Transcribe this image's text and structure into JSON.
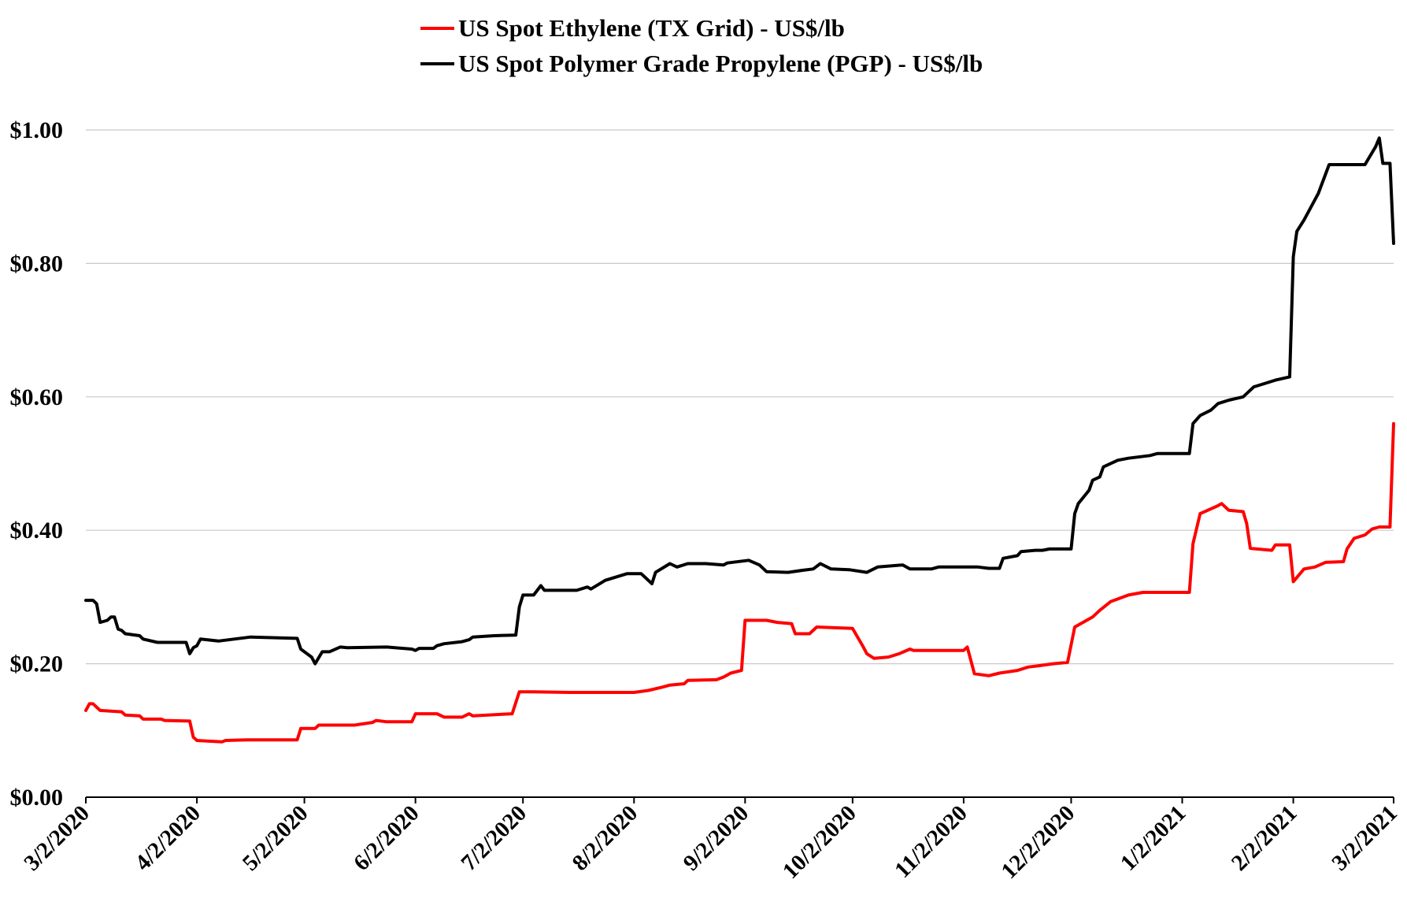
{
  "chart_data": {
    "type": "line",
    "title": "",
    "xlabel": "",
    "ylabel": "",
    "ylim": [
      0,
      1.0
    ],
    "grid": true,
    "legend_position": "top-center",
    "x_range": [
      "3/2/2020",
      "3/2/2021"
    ],
    "x_tick_labels": [
      "3/2/2020",
      "4/2/2020",
      "5/2/2020",
      "6/2/2020",
      "7/2/2020",
      "8/2/2020",
      "9/2/2020",
      "10/2/2020",
      "11/2/2020",
      "12/2/2020",
      "1/2/2021",
      "2/2/2021",
      "3/2/2021"
    ],
    "y_ticks": [
      0,
      0.2,
      0.4,
      0.6,
      0.8,
      1.0
    ],
    "y_tick_labels": [
      "$0.00",
      "$0.20",
      "$0.40",
      "$0.60",
      "$0.80",
      "$1.00"
    ],
    "series": [
      {
        "name": "US Spot Ethylene (TX Grid) - US$/lb",
        "color": "#ff0000",
        "points": [
          [
            "2020-03-02",
            0.13
          ],
          [
            "2020-03-03",
            0.14
          ],
          [
            "2020-03-04",
            0.14
          ],
          [
            "2020-03-06",
            0.13
          ],
          [
            "2020-03-12",
            0.128
          ],
          [
            "2020-03-13",
            0.123
          ],
          [
            "2020-03-17",
            0.122
          ],
          [
            "2020-03-18",
            0.117
          ],
          [
            "2020-03-23",
            0.117
          ],
          [
            "2020-03-24",
            0.115
          ],
          [
            "2020-03-31",
            0.114
          ],
          [
            "2020-04-01",
            0.09
          ],
          [
            "2020-04-02",
            0.085
          ],
          [
            "2020-04-09",
            0.083
          ],
          [
            "2020-04-10",
            0.085
          ],
          [
            "2020-04-16",
            0.086
          ],
          [
            "2020-04-30",
            0.086
          ],
          [
            "2020-05-01",
            0.103
          ],
          [
            "2020-05-05",
            0.103
          ],
          [
            "2020-05-06",
            0.108
          ],
          [
            "2020-05-16",
            0.108
          ],
          [
            "2020-05-21",
            0.112
          ],
          [
            "2020-05-22",
            0.115
          ],
          [
            "2020-05-25",
            0.113
          ],
          [
            "2020-06-01",
            0.113
          ],
          [
            "2020-06-02",
            0.125
          ],
          [
            "2020-06-08",
            0.125
          ],
          [
            "2020-06-10",
            0.12
          ],
          [
            "2020-06-15",
            0.12
          ],
          [
            "2020-06-17",
            0.125
          ],
          [
            "2020-06-18",
            0.122
          ],
          [
            "2020-06-29",
            0.125
          ],
          [
            "2020-07-01",
            0.158
          ],
          [
            "2020-07-05",
            0.158
          ],
          [
            "2020-07-15",
            0.157
          ],
          [
            "2020-08-02",
            0.157
          ],
          [
            "2020-08-06",
            0.16
          ],
          [
            "2020-08-10",
            0.165
          ],
          [
            "2020-08-12",
            0.168
          ],
          [
            "2020-08-16",
            0.17
          ],
          [
            "2020-08-17",
            0.175
          ],
          [
            "2020-08-25",
            0.176
          ],
          [
            "2020-08-27",
            0.18
          ],
          [
            "2020-08-29",
            0.186
          ],
          [
            "2020-09-01",
            0.19
          ],
          [
            "2020-09-02",
            0.265
          ],
          [
            "2020-09-08",
            0.265
          ],
          [
            "2020-09-11",
            0.262
          ],
          [
            "2020-09-15",
            0.26
          ],
          [
            "2020-09-16",
            0.245
          ],
          [
            "2020-09-20",
            0.245
          ],
          [
            "2020-09-22",
            0.255
          ],
          [
            "2020-10-02",
            0.253
          ],
          [
            "2020-10-05",
            0.225
          ],
          [
            "2020-10-06",
            0.215
          ],
          [
            "2020-10-08",
            0.208
          ],
          [
            "2020-10-12",
            0.21
          ],
          [
            "2020-10-15",
            0.215
          ],
          [
            "2020-10-18",
            0.222
          ],
          [
            "2020-10-19",
            0.22
          ],
          [
            "2020-11-02",
            0.22
          ],
          [
            "2020-11-03",
            0.225
          ],
          [
            "2020-11-05",
            0.185
          ],
          [
            "2020-11-09",
            0.182
          ],
          [
            "2020-11-12",
            0.186
          ],
          [
            "2020-11-17",
            0.19
          ],
          [
            "2020-11-20",
            0.195
          ],
          [
            "2020-11-23",
            0.197
          ],
          [
            "2020-11-27",
            0.2
          ],
          [
            "2020-12-01",
            0.202
          ],
          [
            "2020-12-03",
            0.255
          ],
          [
            "2020-12-08",
            0.27
          ],
          [
            "2020-12-10",
            0.28
          ],
          [
            "2020-12-13",
            0.293
          ],
          [
            "2020-12-18",
            0.303
          ],
          [
            "2020-12-22",
            0.307
          ],
          [
            "2021-01-04",
            0.307
          ],
          [
            "2021-01-05",
            0.38
          ],
          [
            "2021-01-07",
            0.425
          ],
          [
            "2021-01-12",
            0.437
          ],
          [
            "2021-01-13",
            0.44
          ],
          [
            "2021-01-15",
            0.43
          ],
          [
            "2021-01-19",
            0.428
          ],
          [
            "2021-01-20",
            0.41
          ],
          [
            "2021-01-21",
            0.373
          ],
          [
            "2021-01-27",
            0.37
          ],
          [
            "2021-01-28",
            0.378
          ],
          [
            "2021-02-01",
            0.378
          ],
          [
            "2021-02-02",
            0.323
          ],
          [
            "2021-02-05",
            0.342
          ],
          [
            "2021-02-08",
            0.345
          ],
          [
            "2021-02-11",
            0.352
          ],
          [
            "2021-02-16",
            0.353
          ],
          [
            "2021-02-17",
            0.372
          ],
          [
            "2021-02-19",
            0.388
          ],
          [
            "2021-02-22",
            0.393
          ],
          [
            "2021-02-24",
            0.402
          ],
          [
            "2021-02-26",
            0.405
          ],
          [
            "2021-03-01",
            0.405
          ],
          [
            "2021-03-02",
            0.56
          ]
        ]
      },
      {
        "name": "US Spot Polymer Grade Propylene (PGP) - US$/lb",
        "color": "#000000",
        "points": [
          [
            "2020-03-02",
            0.295
          ],
          [
            "2020-03-04",
            0.295
          ],
          [
            "2020-03-05",
            0.29
          ],
          [
            "2020-03-06",
            0.262
          ],
          [
            "2020-03-08",
            0.265
          ],
          [
            "2020-03-09",
            0.27
          ],
          [
            "2020-03-10",
            0.27
          ],
          [
            "2020-03-11",
            0.252
          ],
          [
            "2020-03-12",
            0.25
          ],
          [
            "2020-03-13",
            0.245
          ],
          [
            "2020-03-17",
            0.242
          ],
          [
            "2020-03-18",
            0.237
          ],
          [
            "2020-03-22",
            0.232
          ],
          [
            "2020-03-30",
            0.232
          ],
          [
            "2020-03-31",
            0.215
          ],
          [
            "2020-04-01",
            0.224
          ],
          [
            "2020-04-02",
            0.227
          ],
          [
            "2020-04-03",
            0.237
          ],
          [
            "2020-04-08",
            0.234
          ],
          [
            "2020-04-17",
            0.24
          ],
          [
            "2020-04-30",
            0.238
          ],
          [
            "2020-05-01",
            0.222
          ],
          [
            "2020-05-04",
            0.21
          ],
          [
            "2020-05-05",
            0.2
          ],
          [
            "2020-05-07",
            0.218
          ],
          [
            "2020-05-09",
            0.218
          ],
          [
            "2020-05-12",
            0.225
          ],
          [
            "2020-05-14",
            0.224
          ],
          [
            "2020-05-25",
            0.225
          ],
          [
            "2020-06-01",
            0.222
          ],
          [
            "2020-06-02",
            0.22
          ],
          [
            "2020-06-03",
            0.223
          ],
          [
            "2020-06-07",
            0.223
          ],
          [
            "2020-06-08",
            0.227
          ],
          [
            "2020-06-10",
            0.23
          ],
          [
            "2020-06-15",
            0.233
          ],
          [
            "2020-06-17",
            0.236
          ],
          [
            "2020-06-18",
            0.24
          ],
          [
            "2020-06-24",
            0.242
          ],
          [
            "2020-06-30",
            0.243
          ],
          [
            "2020-07-01",
            0.285
          ],
          [
            "2020-07-02",
            0.303
          ],
          [
            "2020-07-05",
            0.303
          ],
          [
            "2020-07-07",
            0.317
          ],
          [
            "2020-07-08",
            0.31
          ],
          [
            "2020-07-17",
            0.31
          ],
          [
            "2020-07-20",
            0.315
          ],
          [
            "2020-07-21",
            0.312
          ],
          [
            "2020-07-25",
            0.325
          ],
          [
            "2020-07-31",
            0.335
          ],
          [
            "2020-08-04",
            0.335
          ],
          [
            "2020-08-07",
            0.32
          ],
          [
            "2020-08-08",
            0.337
          ],
          [
            "2020-08-12",
            0.35
          ],
          [
            "2020-08-14",
            0.345
          ],
          [
            "2020-08-17",
            0.35
          ],
          [
            "2020-08-22",
            0.35
          ],
          [
            "2020-08-27",
            0.348
          ],
          [
            "2020-08-28",
            0.351
          ],
          [
            "2020-09-03",
            0.355
          ],
          [
            "2020-09-06",
            0.348
          ],
          [
            "2020-09-08",
            0.338
          ],
          [
            "2020-09-14",
            0.337
          ],
          [
            "2020-09-18",
            0.34
          ],
          [
            "2020-09-21",
            0.342
          ],
          [
            "2020-09-23",
            0.35
          ],
          [
            "2020-09-26",
            0.342
          ],
          [
            "2020-10-01",
            0.341
          ],
          [
            "2020-10-06",
            0.337
          ],
          [
            "2020-10-09",
            0.345
          ],
          [
            "2020-10-16",
            0.348
          ],
          [
            "2020-10-18",
            0.342
          ],
          [
            "2020-10-24",
            0.342
          ],
          [
            "2020-10-26",
            0.345
          ],
          [
            "2020-11-06",
            0.345
          ],
          [
            "2020-11-09",
            0.343
          ],
          [
            "2020-11-12",
            0.343
          ],
          [
            "2020-11-13",
            0.358
          ],
          [
            "2020-11-17",
            0.362
          ],
          [
            "2020-11-18",
            0.368
          ],
          [
            "2020-11-22",
            0.37
          ],
          [
            "2020-11-24",
            0.37
          ],
          [
            "2020-11-26",
            0.372
          ],
          [
            "2020-12-02",
            0.372
          ],
          [
            "2020-12-03",
            0.425
          ],
          [
            "2020-12-04",
            0.44
          ],
          [
            "2020-12-07",
            0.46
          ],
          [
            "2020-12-08",
            0.475
          ],
          [
            "2020-12-10",
            0.48
          ],
          [
            "2020-12-11",
            0.495
          ],
          [
            "2020-12-15",
            0.505
          ],
          [
            "2020-12-18",
            0.508
          ],
          [
            "2020-12-24",
            0.512
          ],
          [
            "2020-12-26",
            0.515
          ],
          [
            "2021-01-04",
            0.515
          ],
          [
            "2021-01-05",
            0.56
          ],
          [
            "2021-01-07",
            0.572
          ],
          [
            "2021-01-10",
            0.58
          ],
          [
            "2021-01-12",
            0.59
          ],
          [
            "2021-01-15",
            0.595
          ],
          [
            "2021-01-19",
            0.6
          ],
          [
            "2021-01-22",
            0.615
          ],
          [
            "2021-01-25",
            0.62
          ],
          [
            "2021-01-28",
            0.625
          ],
          [
            "2021-02-01",
            0.63
          ],
          [
            "2021-02-02",
            0.81
          ],
          [
            "2021-02-03",
            0.848
          ],
          [
            "2021-02-05",
            0.865
          ],
          [
            "2021-02-09",
            0.905
          ],
          [
            "2021-02-12",
            0.948
          ],
          [
            "2021-02-22",
            0.948
          ],
          [
            "2021-02-25",
            0.975
          ],
          [
            "2021-02-26",
            0.988
          ],
          [
            "2021-02-27",
            0.95
          ],
          [
            "2021-03-01",
            0.95
          ],
          [
            "2021-03-02",
            0.83
          ]
        ]
      }
    ]
  }
}
